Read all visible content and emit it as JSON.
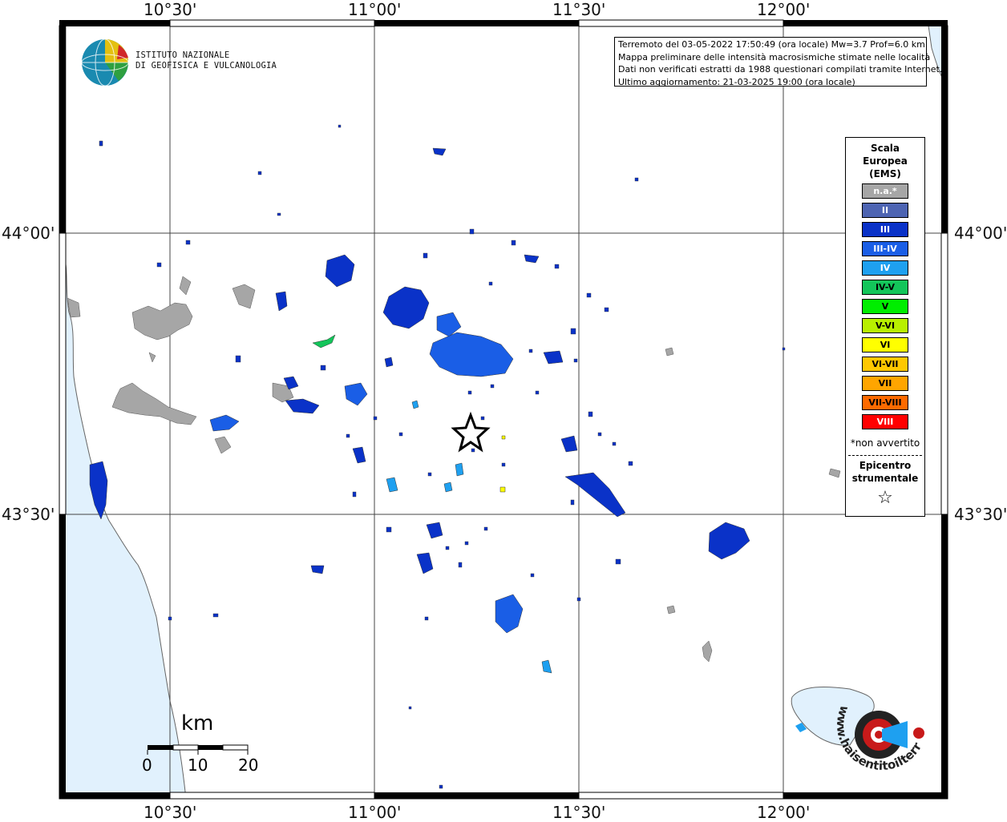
{
  "map": {
    "longitude_labels": [
      "10°30'",
      "11°00'",
      "11°30'",
      "12°00'"
    ],
    "latitude_labels": [
      "44°00'",
      "43°30'"
    ],
    "colors": {
      "sea": "#e1f1fd",
      "na": "#a6a6a6",
      "ii": "#4d64b2",
      "iii": "#0a32c8",
      "iii_iv": "#1a5ee6",
      "iv": "#1ea0f0",
      "iv_v": "#13c55a",
      "v": "#00ee00",
      "v_vi": "#b8f000",
      "vi": "#ffff00",
      "vi_vii": "#ffc800",
      "vii": "#ffa500",
      "vii_viii": "#ff6a00",
      "viii": "#ff0000"
    }
  },
  "logo": {
    "line1": "ISTITUTO NAZIONALE",
    "line2": "DI GEOFISICA E VULCANOLOGIA",
    "icon": "ingv-globe-icon"
  },
  "info": {
    "line1": "Terremoto del 03-05-2022 17:50:49 (ora locale) Mw=3.7 Prof=6.0 km",
    "line2": "Mappa preliminare delle intensità macrosismiche stimate nelle località",
    "line3": "Dati non verificati estratti da 1988 questionari compilati tramite Internet.",
    "line4": "Ultimo aggiornamento: 21-03-2025 19:00 (ora locale)"
  },
  "legend": {
    "title1": "Scala",
    "title2": "Europea",
    "title3": "(EMS)",
    "items": [
      {
        "label": "n.a.*",
        "color": "#a6a6a6",
        "text_color": "#ffffff"
      },
      {
        "label": "II",
        "color": "#4d64b2",
        "text_color": "#ffffff"
      },
      {
        "label": "III",
        "color": "#0a32c8",
        "text_color": "#ffffff"
      },
      {
        "label": "III-IV",
        "color": "#1a5ee6",
        "text_color": "#ffffff"
      },
      {
        "label": "IV",
        "color": "#1ea0f0",
        "text_color": "#ffffff"
      },
      {
        "label": "IV-V",
        "color": "#13c55a",
        "text_color": "#000000"
      },
      {
        "label": "V",
        "color": "#00ee00",
        "text_color": "#000000"
      },
      {
        "label": "V-VI",
        "color": "#b8f000",
        "text_color": "#000000"
      },
      {
        "label": "VI",
        "color": "#ffff00",
        "text_color": "#000000"
      },
      {
        "label": "VI-VII",
        "color": "#ffc800",
        "text_color": "#000000"
      },
      {
        "label": "VII",
        "color": "#ffa500",
        "text_color": "#000000"
      },
      {
        "label": "VII-VIII",
        "color": "#ff6a00",
        "text_color": "#000000"
      },
      {
        "label": "VIII",
        "color": "#ff0000",
        "text_color": "#ffffff"
      }
    ],
    "note": "*non avvertito",
    "epicenter1": "Epicentro",
    "epicenter2": "strumentale",
    "star": "☆"
  },
  "scalebar": {
    "unit": "km",
    "ticks": [
      "0",
      "10",
      "20"
    ]
  },
  "hsit": {
    "text": "www.haisentitoilterremoto.it",
    "icon": "hsit-logo-icon"
  }
}
